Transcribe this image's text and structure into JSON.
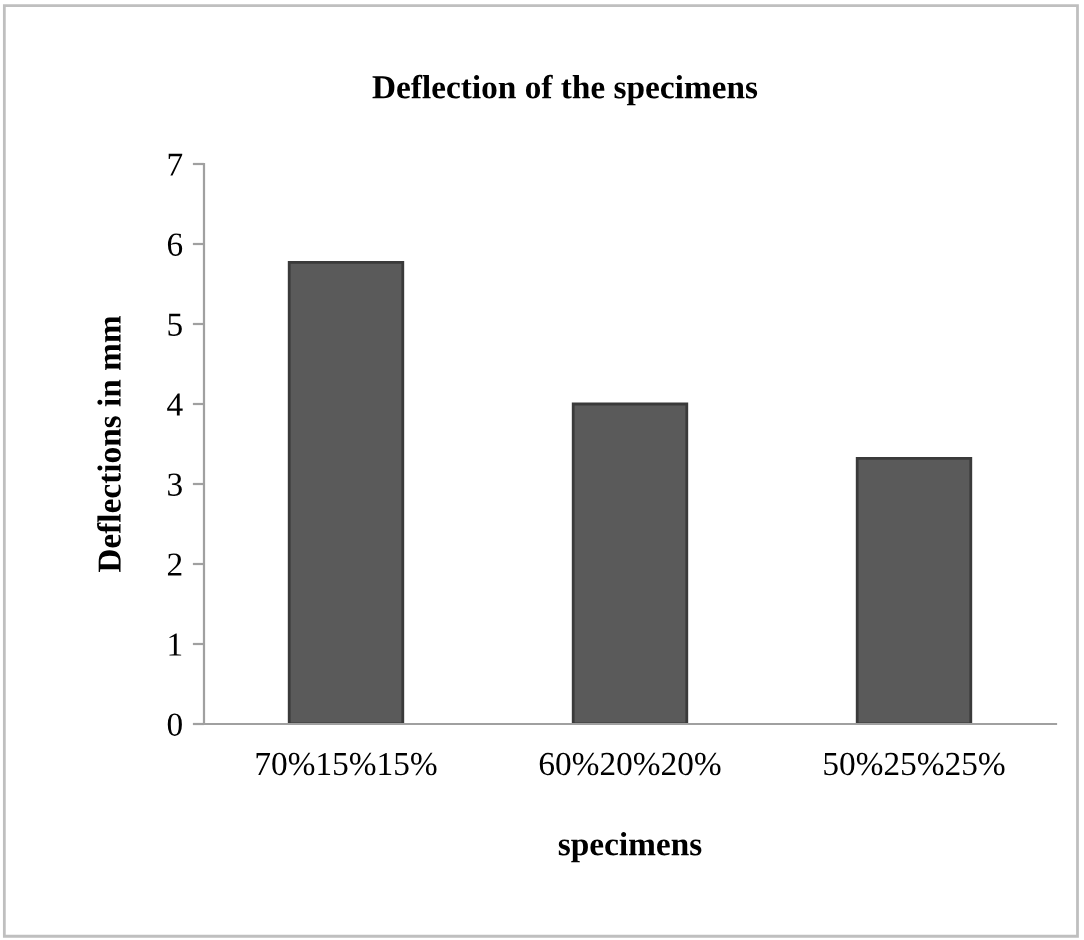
{
  "chart_data": {
    "type": "bar",
    "title": "Deflection of the specimens",
    "xlabel": "specimens",
    "ylabel": "Deflections in mm",
    "categories": [
      "70%15%15%",
      "60%20%20%",
      "50%25%25%"
    ],
    "values": [
      5.77,
      4.0,
      3.32
    ],
    "color": "#5a5a5a",
    "ylim": [
      0,
      7
    ],
    "yticks": [
      0,
      1,
      2,
      3,
      4,
      5,
      6,
      7
    ],
    "grid": false,
    "legend": false
  }
}
